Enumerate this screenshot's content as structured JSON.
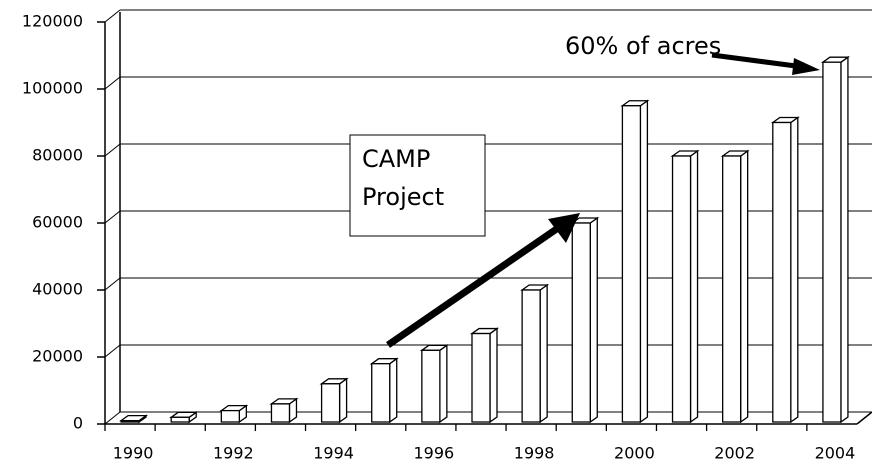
{
  "chart_data": {
    "type": "bar3d",
    "categories": [
      "1990",
      null,
      "1992",
      null,
      "1994",
      null,
      "1996",
      null,
      "1998",
      null,
      "2000",
      null,
      "2002",
      null,
      "2004"
    ],
    "values": [
      1000,
      2000,
      4000,
      6000,
      12000,
      18000,
      22000,
      27000,
      40000,
      60000,
      95000,
      80000,
      80000,
      90000,
      108000
    ],
    "color": "#ffffff",
    "ylim": [
      0,
      120000
    ],
    "yticks": [
      0,
      20000,
      40000,
      60000,
      80000,
      100000,
      120000
    ],
    "grid": true,
    "annotations": [
      "CAMP",
      "Project",
      "60% of acres"
    ]
  }
}
